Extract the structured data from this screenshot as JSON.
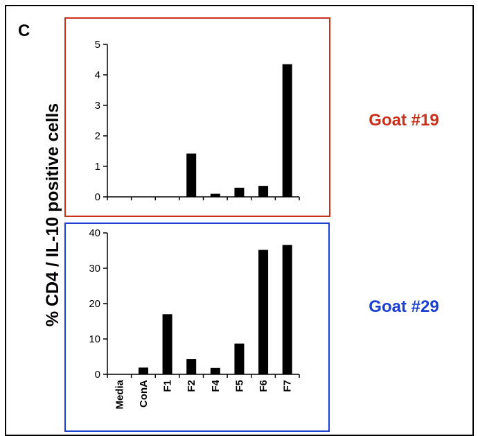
{
  "figure": {
    "panel_letter": "C",
    "ylabel": "% CD4 /  IL-10 positive cells"
  },
  "chart_data": [
    {
      "type": "bar",
      "title": "Goat #19",
      "title_color": "#c8311b",
      "box_color": "#c8311b",
      "categories": [
        "Media",
        "ConA",
        "F1",
        "F2",
        "F4",
        "F5",
        "F6",
        "F7"
      ],
      "values": [
        0,
        0,
        0,
        1.42,
        0.1,
        0.3,
        0.36,
        4.35
      ],
      "yticks": [
        0,
        1,
        2,
        3,
        4,
        5
      ],
      "ylim": [
        0,
        5
      ],
      "show_category_labels": false
    },
    {
      "type": "bar",
      "title": "Goat #29",
      "title_color": "#1a3fd1",
      "box_color": "#1a3fd1",
      "categories": [
        "Media",
        "ConA",
        "F1",
        "F2",
        "F4",
        "F5",
        "F6",
        "F7"
      ],
      "values": [
        0,
        1.9,
        17,
        4.3,
        1.8,
        8.7,
        35.2,
        36.6
      ],
      "yticks": [
        0,
        10,
        20,
        30,
        40
      ],
      "ylim": [
        0,
        40
      ],
      "show_category_labels": true
    }
  ]
}
